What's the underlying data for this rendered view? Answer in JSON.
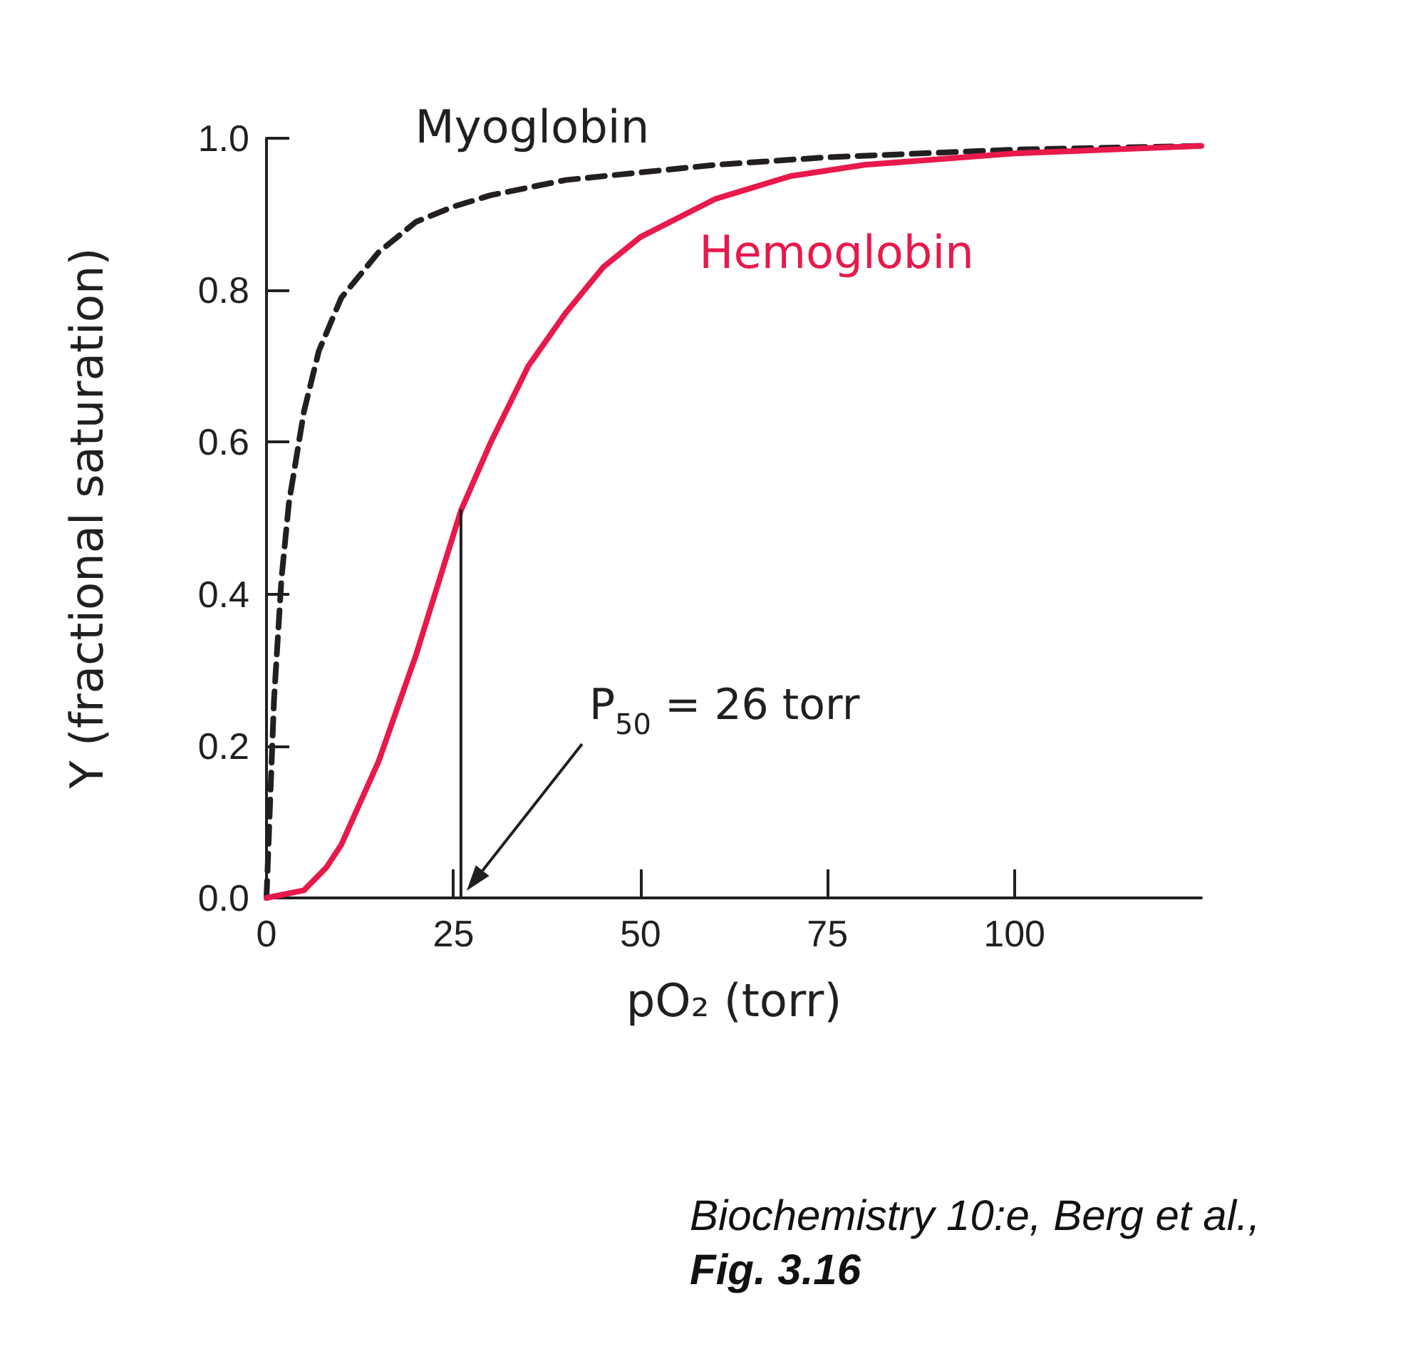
{
  "chart_data": {
    "type": "line",
    "xlabel": "pO₂ (torr)",
    "ylabel": "Y (fractional saturation)",
    "xlim": [
      0,
      125
    ],
    "xticks": [
      0,
      25,
      50,
      75,
      100
    ],
    "ylim": [
      0,
      1
    ],
    "yticks": [
      {
        "value": 0,
        "label": "0.0"
      },
      {
        "value": 0.2,
        "label": "0.2"
      },
      {
        "value": 0.4,
        "label": "0.4"
      },
      {
        "value": 0.6,
        "label": "0.6"
      },
      {
        "value": 0.8,
        "label": "0.8"
      },
      {
        "value": 1,
        "label": "1.0"
      }
    ],
    "grid": false,
    "legend": false,
    "marker": "none",
    "series": [
      {
        "name": "Myoglobin",
        "color": "#231f20",
        "line_style": "dashed",
        "x": [
          0,
          1,
          2,
          3,
          5,
          7,
          10,
          15,
          20,
          25,
          30,
          40,
          50,
          60,
          75,
          100,
          125
        ],
        "values": [
          0,
          0.26,
          0.42,
          0.52,
          0.64,
          0.72,
          0.79,
          0.85,
          0.89,
          0.91,
          0.925,
          0.945,
          0.955,
          0.965,
          0.975,
          0.985,
          0.99
        ]
      },
      {
        "name": "Hemoglobin",
        "color": "#e8194b",
        "line_style": "solid",
        "x": [
          0,
          5,
          8,
          10,
          15,
          20,
          26,
          30,
          35,
          40,
          45,
          50,
          60,
          70,
          80,
          100,
          125
        ],
        "values": [
          0,
          0.01,
          0.04,
          0.07,
          0.18,
          0.32,
          0.51,
          0.6,
          0.7,
          0.77,
          0.83,
          0.87,
          0.92,
          0.95,
          0.965,
          0.98,
          0.99
        ]
      },
      {
        "color": "#231f20",
        "line_style": "solid",
        "x": [
          26,
          26
        ],
        "values": [
          0,
          0.51
        ]
      }
    ],
    "annotations": [
      "P$_{50}$ = 26 torr",
      "Biochemistry 10:e, Berg et al.,",
      "Fig. 3.16"
    ]
  }
}
